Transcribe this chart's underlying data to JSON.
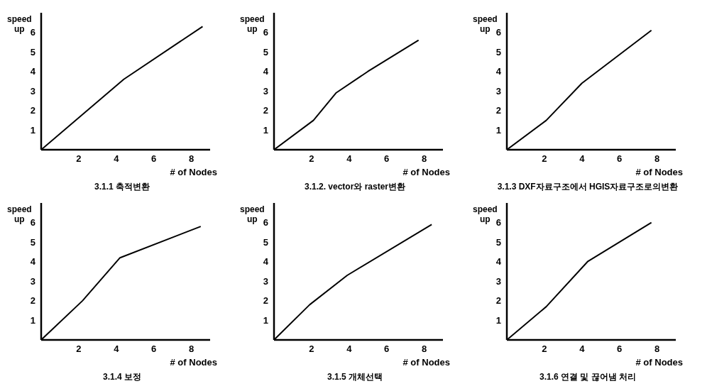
{
  "chart_data": [
    {
      "type": "line",
      "title": "3.1.1 축적변환",
      "xlabel": "# of Nodes",
      "ylabel": "speed up",
      "x": [
        0,
        4.4,
        8.6
      ],
      "values": [
        0,
        3.6,
        6.3
      ],
      "color": "#000000",
      "xlim": [
        0,
        9
      ],
      "ylim": [
        0,
        7
      ],
      "xticks": [
        2,
        4,
        6,
        8
      ],
      "yticks": [
        1,
        2,
        3,
        4,
        5,
        6
      ]
    },
    {
      "type": "line",
      "title": "3.1.2. vector와 raster변환",
      "xlabel": "# of Nodes",
      "ylabel": "speed up",
      "x": [
        0,
        2.1,
        3.3,
        5.0,
        7.7
      ],
      "values": [
        0,
        1.5,
        2.9,
        4.0,
        5.6
      ],
      "color": "#000000",
      "xlim": [
        0,
        9
      ],
      "ylim": [
        0,
        7
      ],
      "xticks": [
        2,
        4,
        6,
        8
      ],
      "yticks": [
        1,
        2,
        3,
        4,
        5,
        6
      ]
    },
    {
      "type": "line",
      "title": "3.1.3 DXF자료구조에서 HGIS자료구조로의변환",
      "xlabel": "# of Nodes",
      "ylabel": "speed up",
      "x": [
        0,
        2.1,
        4.0,
        7.7
      ],
      "values": [
        0,
        1.5,
        3.4,
        6.1
      ],
      "color": "#000000",
      "xlim": [
        0,
        9
      ],
      "ylim": [
        0,
        7
      ],
      "xticks": [
        2,
        4,
        6,
        8
      ],
      "yticks": [
        1,
        2,
        3,
        4,
        5,
        6
      ]
    },
    {
      "type": "line",
      "title": "3.1.4 보정",
      "xlabel": "# of Nodes",
      "ylabel": "speed up",
      "x": [
        0,
        2.2,
        4.2,
        8.5
      ],
      "values": [
        0,
        2.0,
        4.2,
        5.8
      ],
      "color": "#000000",
      "xlim": [
        0,
        9
      ],
      "ylim": [
        0,
        7
      ],
      "xticks": [
        2,
        4,
        6,
        8
      ],
      "yticks": [
        1,
        2,
        3,
        4,
        5,
        6
      ]
    },
    {
      "type": "line",
      "title": "3.1.5 개체선택",
      "xlabel": "# of Nodes",
      "ylabel": "speed up",
      "x": [
        0,
        1.9,
        3.9,
        8.4
      ],
      "values": [
        0,
        1.8,
        3.3,
        5.9
      ],
      "color": "#000000",
      "xlim": [
        0,
        9
      ],
      "ylim": [
        0,
        7
      ],
      "xticks": [
        2,
        4,
        6,
        8
      ],
      "yticks": [
        1,
        2,
        3,
        4,
        5,
        6
      ]
    },
    {
      "type": "line",
      "title": "3.1.6 연결 및 끊어냄 처리",
      "xlabel": "# of Nodes",
      "ylabel": "speed up",
      "x": [
        0,
        2.1,
        4.3,
        7.7
      ],
      "values": [
        0,
        1.7,
        4.0,
        6.0
      ],
      "color": "#000000",
      "xlim": [
        0,
        9
      ],
      "ylim": [
        0,
        7
      ],
      "xticks": [
        2,
        4,
        6,
        8
      ],
      "yticks": [
        1,
        2,
        3,
        4,
        5,
        6
      ]
    }
  ]
}
